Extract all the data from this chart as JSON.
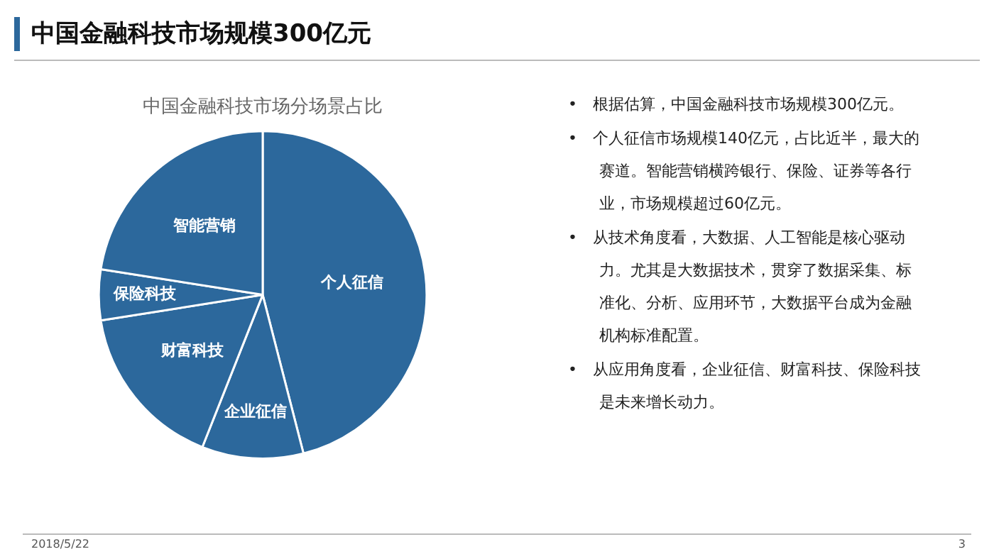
{
  "chart_data": {
    "type": "pie",
    "title": "中国金融科技市场规模300亿元",
    "subtitle": "中国金融科技市场分场景占比",
    "categories": [
      "个人征信",
      "企业征信",
      "财富科技",
      "保险科技",
      "智能营销"
    ],
    "values": [
      46,
      10,
      16.5,
      5,
      22.5
    ],
    "colors": [
      "#2c689c",
      "#2c689c",
      "#2c689c",
      "#2c689c",
      "#2c689c"
    ],
    "legend": false,
    "annotations": [
      "•　根据估算，中国金融科技市场规模300亿元。",
      "•　个人征信市场规模140亿元，占比近半，最大的赛道。智能营销横跨银行、保险、证券等各行业，市场规模超过60亿元。",
      "•　从技术角度看，大数据、人工智能是核心驱动力。尤其是大数据技术，贯穿了数据采集、标准化、分析、应用环节，大数据平台成为金融机构标准配置。",
      "•　从应用角度看，企业征信、财富科技、保险科技是未来增长动力。",
      "2018/5/22",
      "3"
    ]
  }
}
